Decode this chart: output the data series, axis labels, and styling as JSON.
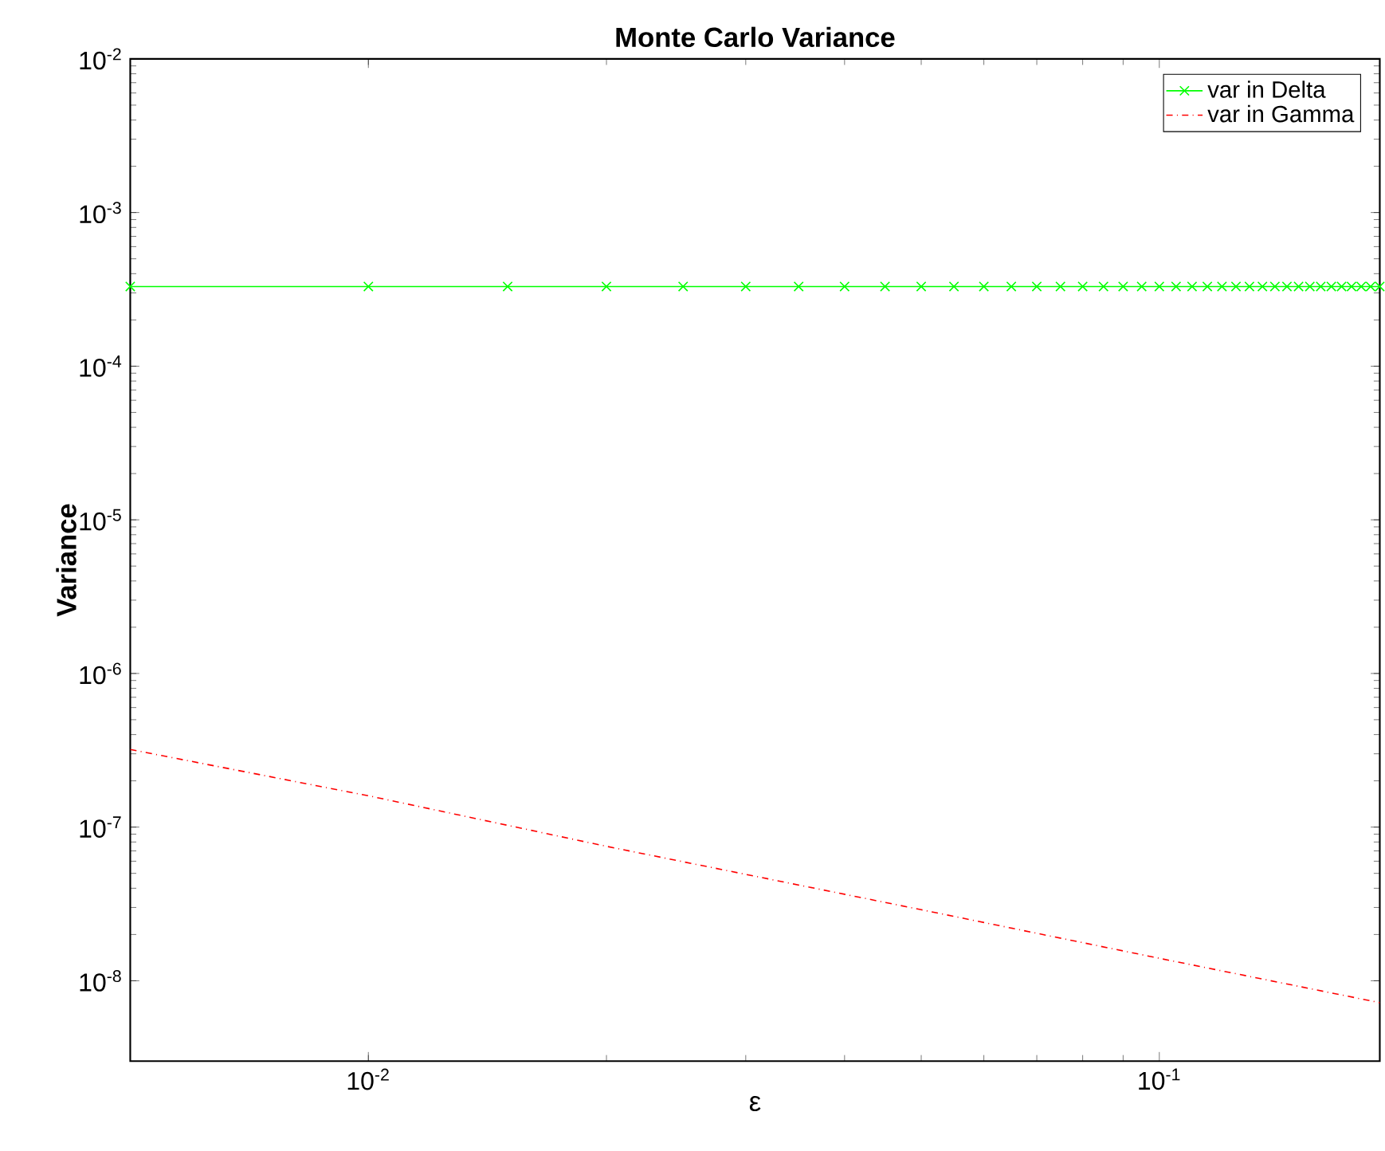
{
  "chart_data": {
    "type": "line",
    "title": "**Monte Carlo Variance**",
    "xlabel": "ε",
    "ylabel": "**Variance**",
    "log": "xy",
    "xlim": [
      0.005,
      0.19
    ],
    "ylim": [
      3e-09,
      0.01
    ],
    "xticks": [
      {
        "value": 0.01,
        "label": "10$^{-2}$"
      },
      {
        "value": 0.1,
        "label": "10$^{-1}$"
      }
    ],
    "yticks": [
      {
        "value": 1e-08,
        "label": "10$^{-8}$"
      },
      {
        "value": 1e-07,
        "label": "10$^{-7}$"
      },
      {
        "value": 1e-06,
        "label": "10$^{-6}$"
      },
      {
        "value": 1e-05,
        "label": "10$^{-5}$"
      },
      {
        "value": 0.0001,
        "label": "10$^{-4}$"
      },
      {
        "value": 0.001,
        "label": "10$^{-3}$"
      },
      {
        "value": 0.01,
        "label": "10$^{-2}$"
      }
    ],
    "legend": "top right",
    "grid": false,
    "series": [
      {
        "name": "var in Delta",
        "color": "#00ff00",
        "marker": "cross",
        "line_style": "solid",
        "x": [
          0.005,
          0.01,
          0.015,
          0.02,
          0.025,
          0.03,
          0.035,
          0.04,
          0.045,
          0.05,
          0.055,
          0.06,
          0.065,
          0.07,
          0.075,
          0.08,
          0.085,
          0.09,
          0.095,
          0.1,
          0.105,
          0.11,
          0.115,
          0.12,
          0.125,
          0.13,
          0.135,
          0.14,
          0.145,
          0.15,
          0.155,
          0.16,
          0.165,
          0.17,
          0.175,
          0.18,
          0.185,
          0.19
        ],
        "values": [
          0.00033,
          0.00033,
          0.00033,
          0.00033,
          0.00033,
          0.00033,
          0.00033,
          0.00033,
          0.00033,
          0.00033,
          0.00033,
          0.00033,
          0.00033,
          0.00033,
          0.00033,
          0.00033,
          0.00033,
          0.00033,
          0.00033,
          0.00033,
          0.00033,
          0.00033,
          0.00033,
          0.00033,
          0.00033,
          0.00033,
          0.00033,
          0.00033,
          0.00033,
          0.00033,
          0.00033,
          0.00033,
          0.00033,
          0.00033,
          0.00033,
          0.00033,
          0.00033,
          0.00033
        ]
      },
      {
        "name": "var in Gamma",
        "color": "#ff0000",
        "marker": "none",
        "line_style": "dashdot",
        "x": [
          0.005,
          0.01,
          0.02,
          0.05,
          0.1,
          0.19
        ],
        "values": [
          3.2e-07,
          1.6e-07,
          7.5e-08,
          2.9e-08,
          1.4e-08,
          7.2e-09
        ]
      }
    ]
  }
}
